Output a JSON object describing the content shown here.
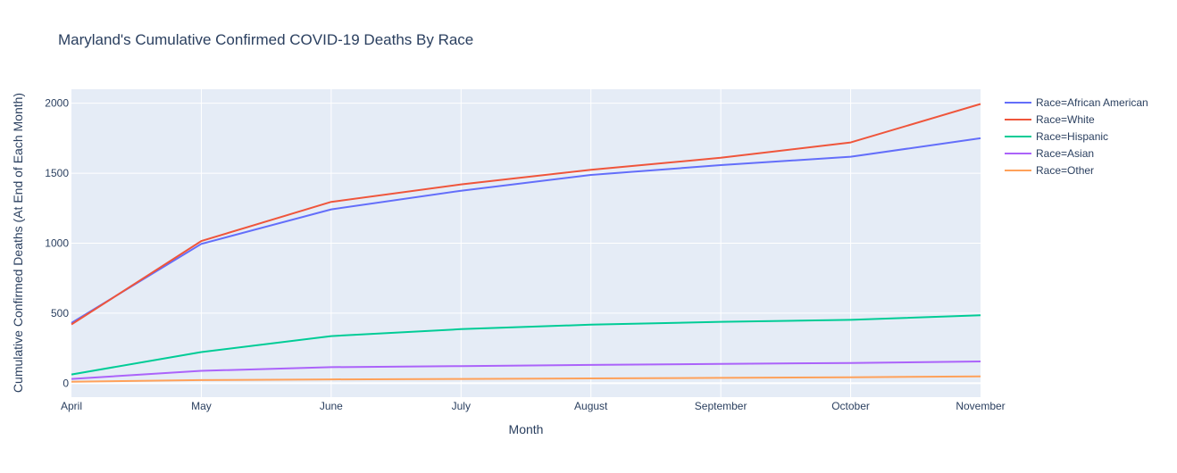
{
  "chart_data": {
    "type": "line",
    "title": "Maryland's Cumulative Confirmed COVID-19 Deaths By Race",
    "xlabel": "Month",
    "ylabel": "Cumulative Confirmed Deaths (At End of Each Month)",
    "categories": [
      "April",
      "May",
      "June",
      "July",
      "August",
      "September",
      "October",
      "November"
    ],
    "ylim": [
      -100,
      2100
    ],
    "yticks": [
      0,
      500,
      1000,
      1500,
      2000
    ],
    "grid": true,
    "legend_position": "top-right",
    "plot_background": "#e5ecf6",
    "series": [
      {
        "name": "Race=African American",
        "color": "#636efa",
        "values": [
          430,
          995,
          1242,
          1375,
          1488,
          1558,
          1618,
          1750
        ]
      },
      {
        "name": "Race=White",
        "color": "#ef553b",
        "values": [
          420,
          1015,
          1295,
          1420,
          1525,
          1610,
          1720,
          1995
        ]
      },
      {
        "name": "Race=Hispanic",
        "color": "#00cc96",
        "values": [
          62,
          222,
          336,
          386,
          418,
          438,
          452,
          485
        ]
      },
      {
        "name": "Race=Asian",
        "color": "#ab63fa",
        "values": [
          30,
          88,
          114,
          122,
          130,
          137,
          144,
          155
        ]
      },
      {
        "name": "Race=Other",
        "color": "#ffa15a",
        "values": [
          10,
          22,
          27,
          30,
          34,
          38,
          42,
          48
        ]
      }
    ]
  }
}
